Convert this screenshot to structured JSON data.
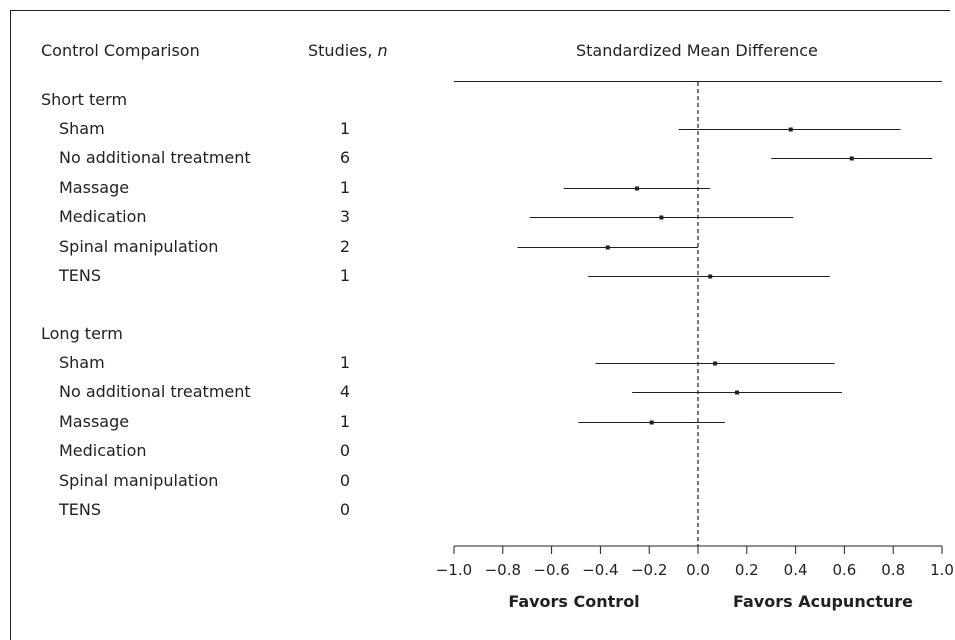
{
  "headers": {
    "comparison": "Control Comparison",
    "studies": "Studies,",
    "studies_n": "n",
    "smd": "Standardized Mean Difference"
  },
  "groups": [
    {
      "label": "Short term",
      "rows": [
        {
          "label": "Sham",
          "n": "1"
        },
        {
          "label": "No additional treatment",
          "n": "6"
        },
        {
          "label": "Massage",
          "n": "1"
        },
        {
          "label": "Medication",
          "n": "3"
        },
        {
          "label": "Spinal manipulation",
          "n": "2"
        },
        {
          "label": "TENS",
          "n": "1"
        }
      ]
    },
    {
      "label": "Long term",
      "rows": [
        {
          "label": "Sham",
          "n": "1"
        },
        {
          "label": "No additional treatment",
          "n": "4"
        },
        {
          "label": "Massage",
          "n": "1"
        },
        {
          "label": "Medication",
          "n": "0"
        },
        {
          "label": "Spinal manipulation",
          "n": "0"
        },
        {
          "label": "TENS",
          "n": "0"
        }
      ]
    }
  ],
  "chart_data": {
    "type": "forest",
    "xlabel_left": "Favors Control",
    "xlabel_right": "Favors Acupuncture",
    "xlim": [
      -1.0,
      1.0
    ],
    "ticks": [
      -1.0,
      -0.8,
      -0.6,
      -0.4,
      -0.2,
      0.0,
      0.2,
      0.4,
      0.6,
      0.8,
      1.0
    ],
    "tick_labels": [
      "−1.0",
      "−0.8",
      "−0.6",
      "−0.4",
      "−0.2",
      "0.0",
      "0.2",
      "0.4",
      "0.6",
      "0.8",
      "1.0"
    ],
    "reference_line": 0.0,
    "estimates": [
      {
        "group": "Short term",
        "label": "Sham",
        "point": 0.38,
        "lower": -0.08,
        "upper": 0.83
      },
      {
        "group": "Short term",
        "label": "No additional treatment",
        "point": 0.63,
        "lower": 0.3,
        "upper": 0.96
      },
      {
        "group": "Short term",
        "label": "Massage",
        "point": -0.25,
        "lower": -0.55,
        "upper": 0.05
      },
      {
        "group": "Short term",
        "label": "Medication",
        "point": -0.15,
        "lower": -0.69,
        "upper": 0.39
      },
      {
        "group": "Short term",
        "label": "Spinal manipulation",
        "point": -0.37,
        "lower": -0.74,
        "upper": 0.0
      },
      {
        "group": "Short term",
        "label": "TENS",
        "point": 0.05,
        "lower": -0.45,
        "upper": 0.54
      },
      {
        "group": "Long term",
        "label": "Sham",
        "point": 0.07,
        "lower": -0.42,
        "upper": 0.56
      },
      {
        "group": "Long term",
        "label": "No additional treatment",
        "point": 0.16,
        "lower": -0.27,
        "upper": 0.59
      },
      {
        "group": "Long term",
        "label": "Massage",
        "point": -0.19,
        "lower": -0.49,
        "upper": 0.11
      }
    ],
    "colors": {
      "ink": "#231f20"
    }
  }
}
